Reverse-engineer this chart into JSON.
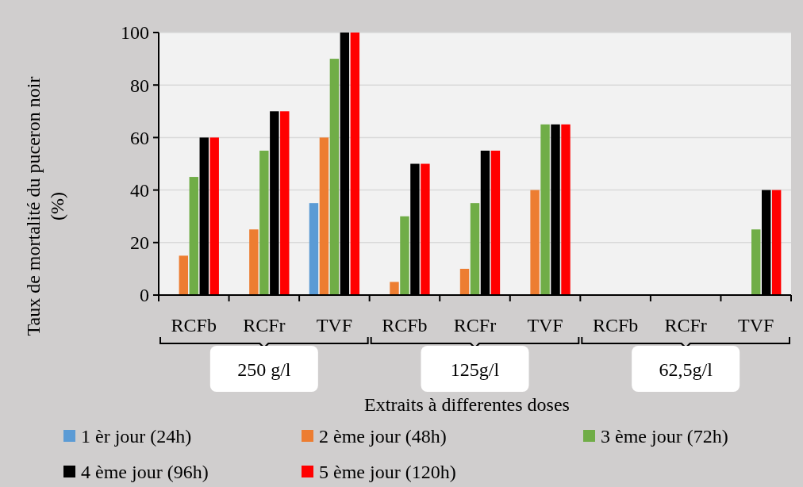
{
  "chart_data": {
    "type": "bar",
    "xlabel": "Extraits à differentes doses",
    "ylabel": "Taux de mortalité du puceron noir (%)",
    "categories": [
      "RCFb",
      "RCFr",
      "TVF",
      "RCFb",
      "RCFr",
      "TVF",
      "RCFb",
      "RCFr",
      "TVF"
    ],
    "series": [
      {
        "name": "1 èr jour (24h)",
        "color": "#5b9bd5",
        "values": [
          0,
          0,
          35,
          0,
          0,
          0,
          0,
          0,
          0
        ]
      },
      {
        "name": "2 ème jour (48h)",
        "color": "#ed7d31",
        "values": [
          15,
          25,
          60,
          5,
          10,
          40,
          0,
          0,
          0
        ]
      },
      {
        "name": "3 ème jour (72h)",
        "color": "#70ad47",
        "values": [
          45,
          55,
          90,
          30,
          35,
          65,
          0,
          0,
          25
        ]
      },
      {
        "name": "4 ème jour (96h)",
        "color": "#000000",
        "values": [
          60,
          70,
          100,
          50,
          55,
          65,
          0,
          0,
          40
        ]
      },
      {
        "name": "5 ème jour (120h)",
        "color": "#ff0000",
        "values": [
          60,
          70,
          100,
          50,
          55,
          65,
          0,
          0,
          40
        ]
      }
    ],
    "ylim": [
      0,
      100
    ],
    "yticks": [
      0,
      20,
      40,
      60,
      80,
      100
    ],
    "grid": "y",
    "legend": "bottom",
    "annotations": [
      "250 g/l",
      "125g/l",
      "62,5g/l"
    ]
  }
}
